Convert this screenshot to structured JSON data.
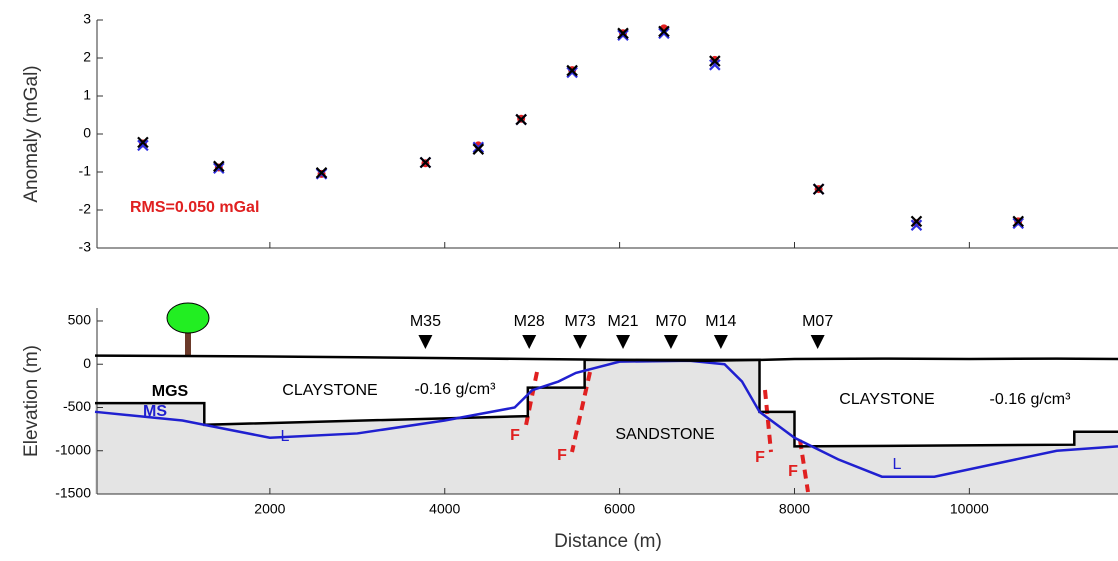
{
  "chart_data": [
    {
      "type": "scatter",
      "ylabel": "Anomaly (mGal)",
      "annotation": "RMS=0.050 mGal",
      "xlim": [
        0,
        11700
      ],
      "xticks": [
        2000,
        4000,
        6000,
        8000,
        10000
      ],
      "ylim": [
        -3,
        3
      ],
      "yticks": [
        -3,
        -2,
        -1,
        0,
        1,
        2,
        3
      ],
      "x": [
        548,
        1416,
        2591,
        3779,
        4384,
        4874,
        5457,
        6039,
        6507,
        7089,
        8276,
        9395,
        10559
      ],
      "series": [
        {
          "color": "#e02020",
          "marker": "dot",
          "values": [
            -0.25,
            -0.88,
            -1.05,
            -0.77,
            -0.3,
            0.4,
            1.68,
            2.65,
            2.78,
            1.95,
            -1.45,
            -2.35,
            -2.3
          ]
        },
        {
          "color": "#3030e0",
          "marker": "x",
          "values": [
            -0.3,
            -0.9,
            -1.05,
            -0.75,
            -0.35,
            0.38,
            1.62,
            2.6,
            2.65,
            1.82,
            -1.45,
            -2.4,
            -2.35
          ]
        },
        {
          "color": "#000000",
          "marker": "x",
          "values": [
            -0.22,
            -0.85,
            -1.02,
            -0.75,
            -0.4,
            0.38,
            1.67,
            2.65,
            2.7,
            1.92,
            -1.45,
            -2.3,
            -2.3
          ]
        }
      ]
    },
    {
      "type": "line",
      "ylabel": "Elevation (m)",
      "xlabel": "Distance (m)",
      "xlim": [
        0,
        11700
      ],
      "xticks": [
        2000,
        4000,
        6000,
        8000,
        10000
      ],
      "ylim": [
        -1500,
        650
      ],
      "yticks": [
        -1500,
        -1000,
        -500,
        0,
        500
      ],
      "series": [
        {
          "color": "#000000",
          "fill": "#e4e4e4",
          "x": [
            0,
            1250,
            1250,
            4950,
            4950,
            5600,
            5600,
            7600,
            7600,
            8000,
            8000,
            11200,
            11200,
            11700
          ],
          "values": [
            -450,
            -450,
            -700,
            -600,
            -270,
            -270,
            50,
            50,
            -550,
            -550,
            -950,
            -930,
            -780,
            -780
          ]
        },
        {
          "color": "#2020d0",
          "x": [
            0,
            1000,
            2000,
            3000,
            4000,
            4800,
            5000,
            5300,
            5500,
            6000,
            6800,
            7200,
            7400,
            7600,
            8000,
            8500,
            9000,
            9600,
            10300,
            11000,
            11700
          ],
          "values": [
            -550,
            -650,
            -850,
            -800,
            -650,
            -500,
            -300,
            -200,
            -100,
            30,
            40,
            0,
            -200,
            -550,
            -850,
            -1100,
            -1300,
            -1300,
            -1150,
            -1000,
            -950
          ]
        },
        {
          "color": "#000000",
          "x": [
            0,
            1000,
            2000,
            3000,
            4000,
            5000,
            5600,
            6000,
            6500,
            7000,
            7600,
            8000,
            9000,
            10000,
            11000,
            11700
          ],
          "values": [
            100,
            95,
            90,
            80,
            70,
            60,
            55,
            50,
            45,
            40,
            50,
            60,
            65,
            60,
            65,
            60
          ]
        }
      ],
      "stations": [
        {
          "label": "M35",
          "x": 3779
        },
        {
          "label": "M28",
          "x": 4966
        },
        {
          "label": "M73",
          "x": 5548
        },
        {
          "label": "M21",
          "x": 6039
        },
        {
          "label": "M70",
          "x": 6587
        },
        {
          "label": "M14",
          "x": 7158
        },
        {
          "label": "M07",
          "x": 8265
        }
      ],
      "annotations": [
        "MGS",
        "MS",
        "L",
        "L",
        "CLAYSTONE",
        "-0.16 g/cm³",
        "CLAYSTONE",
        "-0.16 g/cm³",
        "SANDSTONE",
        "F",
        "F",
        "F",
        "F"
      ]
    }
  ]
}
